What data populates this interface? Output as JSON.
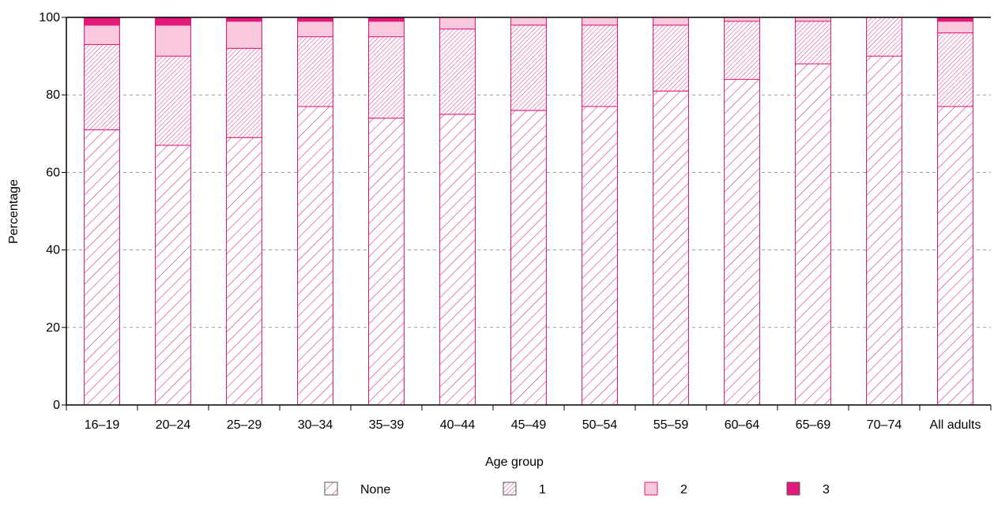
{
  "chart_data": {
    "type": "bar",
    "stacked": true,
    "title": "",
    "xlabel": "Age group",
    "ylabel": "Percentage",
    "ylim": [
      0,
      100
    ],
    "yticks": [
      0,
      20,
      40,
      60,
      80,
      100
    ],
    "grid": "horizontal dashed",
    "legend_position": "bottom",
    "categories": [
      "16–19",
      "20–24",
      "25–29",
      "30–34",
      "35–39",
      "40–44",
      "45–49",
      "50–54",
      "55–59",
      "60–64",
      "65–69",
      "70–74",
      "All adults"
    ],
    "series": [
      {
        "name": "None",
        "pattern": "wide-diagonal",
        "color": "#e0197a",
        "values": [
          71,
          67,
          69,
          77,
          74,
          75,
          76,
          77,
          81,
          84,
          88,
          90,
          77
        ]
      },
      {
        "name": "1",
        "pattern": "dense-diagonal",
        "color": "#e0197a",
        "values": [
          22,
          23,
          23,
          18,
          21,
          22,
          22,
          21,
          17,
          15,
          11,
          10,
          19
        ]
      },
      {
        "name": "2",
        "pattern": "solid-light",
        "color": "#f9c8dc",
        "values": [
          5,
          8,
          7,
          4,
          4,
          3,
          2,
          2,
          2,
          1,
          1,
          0,
          3
        ]
      },
      {
        "name": "3",
        "pattern": "solid-dark",
        "color": "#e0197a",
        "values": [
          2,
          2,
          1,
          1,
          1,
          0,
          0,
          0,
          0,
          0,
          0,
          0,
          1
        ]
      }
    ]
  }
}
